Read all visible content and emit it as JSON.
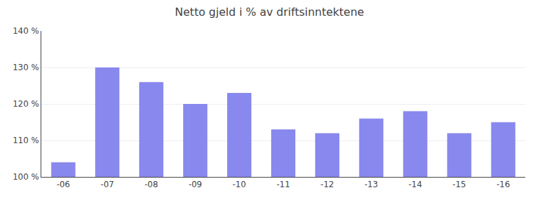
{
  "chart_data": {
    "type": "bar",
    "title": "Netto gjeld i % av driftsinntektene",
    "categories": [
      "-06",
      "-07",
      "-08",
      "-09",
      "-10",
      "-11",
      "-12",
      "-13",
      "-14",
      "-15",
      "-16"
    ],
    "values": [
      104,
      130,
      126,
      120,
      123,
      113,
      112,
      116,
      118,
      112,
      115
    ],
    "color": "#8888EE",
    "ylim": [
      100,
      140
    ],
    "yticks": [
      {
        "value": 100,
        "label": "100 %"
      },
      {
        "value": 110,
        "label": "110 %"
      },
      {
        "value": 120,
        "label": "120 %"
      },
      {
        "value": 130,
        "label": "130 %"
      },
      {
        "value": 140,
        "label": "140 %"
      }
    ],
    "grid": true
  }
}
